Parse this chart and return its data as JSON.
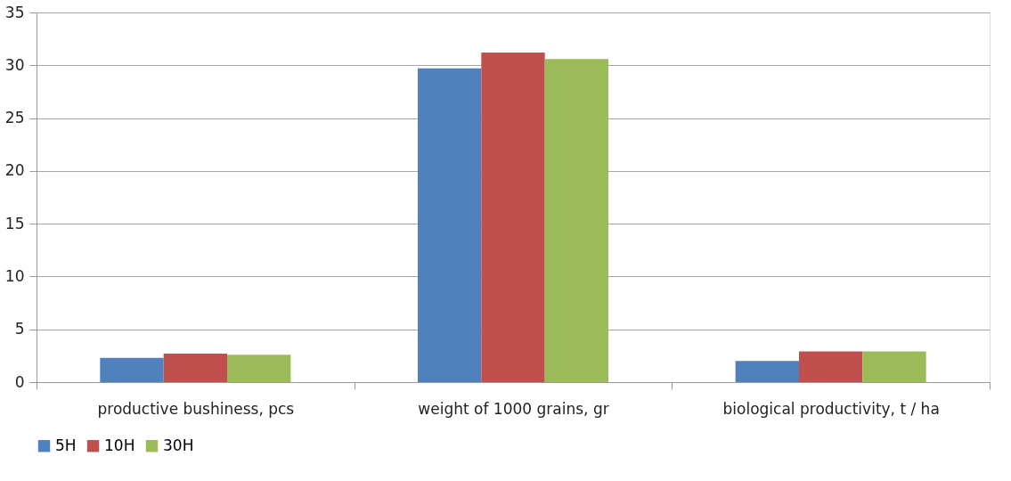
{
  "chart_data": {
    "type": "bar",
    "categories": [
      "productive bushiness, pcs",
      "weight of 1000 grains, gr",
      "biological productivity, t / ha"
    ],
    "series": [
      {
        "name": "5H",
        "color": "#4f81bd",
        "values": [
          2.3,
          29.7,
          2.0
        ]
      },
      {
        "name": "10H",
        "color": "#c0504d",
        "values": [
          2.7,
          31.2,
          2.9
        ]
      },
      {
        "name": "30H",
        "color": "#9bbb59",
        "values": [
          2.6,
          30.6,
          2.9
        ]
      }
    ],
    "ylim": [
      0,
      35
    ],
    "yticks": [
      0,
      5,
      10,
      15,
      20,
      25,
      30,
      35
    ],
    "grid": "y",
    "legend": "bottom"
  }
}
